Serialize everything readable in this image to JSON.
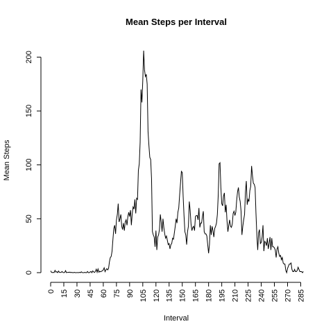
{
  "chart_data": {
    "type": "line",
    "title": "Mean Steps per Interval",
    "xlabel": "Interval",
    "ylabel": "Mean Steps",
    "xlim": [
      0,
      287
    ],
    "ylim": [
      0,
      206
    ],
    "x_ticks": [
      0,
      15,
      30,
      45,
      60,
      75,
      90,
      105,
      120,
      135,
      150,
      165,
      180,
      195,
      210,
      225,
      240,
      255,
      270,
      285
    ],
    "y_ticks": [
      0,
      50,
      100,
      150,
      200
    ],
    "grid": false,
    "series": [
      {
        "values": [
          1.7,
          0.3,
          0.1,
          0.2,
          0.1,
          2.1,
          0.5,
          0.9,
          0,
          1.5,
          0.3,
          0.2,
          0.3,
          1.1,
          0.2,
          0,
          0.2,
          1.9,
          0,
          0.2,
          0.4,
          0.2,
          0.5,
          0,
          0.3,
          0,
          0,
          0.3,
          0,
          0,
          0.1,
          0.1,
          0,
          0.3,
          0,
          0.8,
          0.1,
          0,
          0,
          0.3,
          0,
          0,
          1.1,
          0,
          0,
          0.6,
          1.1,
          0,
          1.6,
          0.7,
          0.2,
          1.1,
          3.2,
          0.3,
          3.4,
          0.4,
          1.3,
          0.8,
          1.3,
          1.7,
          2.6,
          4.5,
          0.9,
          2.6,
          3.7,
          2.5,
          3.9,
          10,
          14,
          15,
          20,
          31,
          41,
          44,
          36,
          49,
          54,
          64,
          47,
          50,
          54,
          43,
          40,
          46,
          39,
          47,
          49,
          44,
          52,
          56,
          52,
          58,
          44,
          55,
          61,
          59,
          68,
          55,
          69,
          68,
          95,
          101,
          121,
          170,
          158,
          178,
          206,
          188,
          182,
          184,
          175,
          131,
          118,
          107,
          105,
          87,
          38,
          35,
          33,
          24,
          39,
          21,
          33,
          35,
          40,
          54,
          47,
          38,
          50,
          42,
          36,
          32,
          34,
          30,
          26,
          27,
          22,
          26,
          27,
          32,
          31,
          37,
          43,
          50,
          46,
          56,
          60,
          72,
          83,
          94,
          93,
          71,
          53,
          38,
          35,
          26,
          38,
          43,
          66,
          58,
          45,
          39,
          42,
          43,
          39,
          52,
          53,
          53,
          49,
          60,
          42,
          46,
          46,
          52,
          57,
          38,
          36,
          36,
          34,
          26,
          18,
          26,
          44,
          35,
          43,
          39,
          33,
          41,
          43,
          46,
          54,
          72,
          101,
          102,
          79,
          64,
          62,
          71,
          74,
          56,
          63,
          48,
          38,
          44,
          49,
          43,
          42,
          45,
          55,
          57,
          53,
          56,
          67,
          75,
          79,
          70,
          66,
          57,
          35,
          43,
          49,
          54,
          75,
          85,
          63,
          68,
          66,
          76,
          80,
          99,
          90,
          83,
          82,
          79,
          55,
          35,
          21,
          37,
          40,
          27,
          28,
          33,
          44,
          20,
          29,
          28,
          25,
          32,
          22,
          27,
          33,
          21,
          32,
          24,
          24,
          23,
          21,
          14,
          22,
          24,
          18,
          15,
          16,
          12,
          14,
          9,
          8,
          8,
          2,
          0,
          4,
          6,
          8,
          8,
          9,
          3,
          1,
          1,
          3,
          1,
          1,
          2,
          5,
          3,
          1,
          1,
          1,
          0,
          1.1
        ]
      }
    ]
  }
}
